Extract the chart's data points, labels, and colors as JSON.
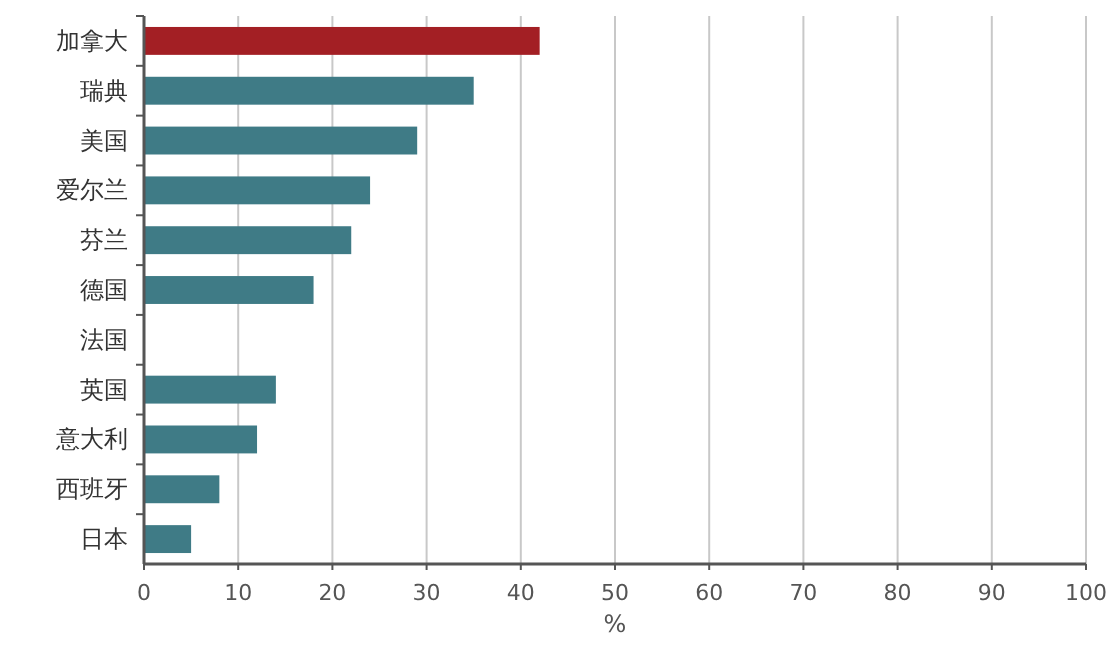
{
  "chart_data": {
    "type": "bar",
    "orientation": "horizontal",
    "xlabel": "%",
    "categories": [
      "加拿大",
      "瑞典",
      "美国",
      "爱尔兰",
      "芬兰",
      "德国",
      "法国",
      "英国",
      "意大利",
      "西班牙",
      "日本"
    ],
    "values": [
      42,
      35,
      29,
      24,
      22,
      18,
      null,
      14,
      12,
      8,
      5
    ],
    "colors": [
      "#a31f24",
      "#3f7b86",
      "#3f7b86",
      "#3f7b86",
      "#3f7b86",
      "#3f7b86",
      null,
      "#3f7b86",
      "#3f7b86",
      "#3f7b86",
      "#3f7b86"
    ],
    "xlim": [
      0,
      100
    ],
    "xticks": [
      0,
      10,
      20,
      30,
      40,
      50,
      60,
      70,
      80,
      90,
      100
    ],
    "grid": "x"
  }
}
